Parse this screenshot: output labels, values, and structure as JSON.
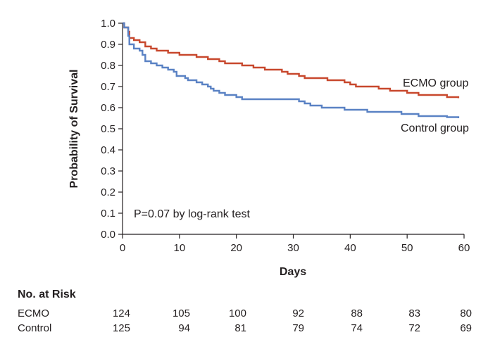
{
  "chart_data": {
    "type": "line",
    "subtype": "kaplan-meier step curve",
    "xlabel": "Days",
    "ylabel": "Probability of Survival",
    "xlim": [
      0,
      60
    ],
    "ylim": [
      0.0,
      1.0
    ],
    "x_ticks": [
      0,
      10,
      20,
      30,
      40,
      50,
      60
    ],
    "y_ticks": [
      "0.0",
      "0.1",
      "0.2",
      "0.3",
      "0.4",
      "0.5",
      "0.6",
      "0.7",
      "0.8",
      "0.9",
      "1.0"
    ],
    "grid": false,
    "annotation": "P=0.07 by log-rank test",
    "series": [
      {
        "name": "ECMO group",
        "color": "#c8482d",
        "points": [
          [
            0,
            1.0
          ],
          [
            0.3,
            0.98
          ],
          [
            1,
            0.96
          ],
          [
            1.2,
            0.93
          ],
          [
            2,
            0.92
          ],
          [
            3,
            0.91
          ],
          [
            4,
            0.89
          ],
          [
            5,
            0.88
          ],
          [
            6,
            0.87
          ],
          [
            8,
            0.86
          ],
          [
            10,
            0.85
          ],
          [
            13,
            0.84
          ],
          [
            15,
            0.83
          ],
          [
            17,
            0.82
          ],
          [
            18,
            0.81
          ],
          [
            21,
            0.8
          ],
          [
            23,
            0.79
          ],
          [
            25,
            0.78
          ],
          [
            28,
            0.77
          ],
          [
            29,
            0.76
          ],
          [
            31,
            0.75
          ],
          [
            32,
            0.74
          ],
          [
            34,
            0.74
          ],
          [
            36,
            0.73
          ],
          [
            38,
            0.73
          ],
          [
            39,
            0.72
          ],
          [
            40,
            0.71
          ],
          [
            41,
            0.7
          ],
          [
            45,
            0.69
          ],
          [
            47,
            0.68
          ],
          [
            49,
            0.68
          ],
          [
            50,
            0.67
          ],
          [
            52,
            0.66
          ],
          [
            54,
            0.66
          ],
          [
            57,
            0.65
          ],
          [
            59,
            0.645
          ]
        ]
      },
      {
        "name": "Control group",
        "color": "#5a82c4",
        "points": [
          [
            0,
            1.0
          ],
          [
            0.3,
            0.98
          ],
          [
            1,
            0.94
          ],
          [
            1.2,
            0.9
          ],
          [
            2,
            0.88
          ],
          [
            3,
            0.87
          ],
          [
            3.5,
            0.85
          ],
          [
            4,
            0.82
          ],
          [
            5,
            0.81
          ],
          [
            6,
            0.8
          ],
          [
            7,
            0.79
          ],
          [
            8,
            0.78
          ],
          [
            9,
            0.77
          ],
          [
            9.5,
            0.75
          ],
          [
            11,
            0.74
          ],
          [
            11.5,
            0.73
          ],
          [
            13,
            0.72
          ],
          [
            14,
            0.71
          ],
          [
            15,
            0.7
          ],
          [
            15.5,
            0.69
          ],
          [
            16,
            0.68
          ],
          [
            17,
            0.67
          ],
          [
            18,
            0.66
          ],
          [
            20,
            0.65
          ],
          [
            21,
            0.64
          ],
          [
            31,
            0.63
          ],
          [
            32,
            0.62
          ],
          [
            33,
            0.61
          ],
          [
            35,
            0.6
          ],
          [
            38,
            0.6
          ],
          [
            39,
            0.59
          ],
          [
            42,
            0.59
          ],
          [
            43,
            0.58
          ],
          [
            48,
            0.58
          ],
          [
            49,
            0.57
          ],
          [
            51,
            0.57
          ],
          [
            52,
            0.56
          ],
          [
            56,
            0.56
          ],
          [
            57,
            0.555
          ],
          [
            59,
            0.55
          ]
        ]
      }
    ]
  },
  "risk_table": {
    "title": "No. at Risk",
    "columns": [
      0,
      10,
      20,
      30,
      40,
      50,
      60
    ],
    "rows": [
      {
        "label": "ECMO",
        "values": [
          "124",
          "105",
          "100",
          "92",
          "88",
          "83",
          "80"
        ]
      },
      {
        "label": "Control",
        "values": [
          "125",
          "94",
          "81",
          "79",
          "74",
          "72",
          "69"
        ]
      }
    ]
  }
}
